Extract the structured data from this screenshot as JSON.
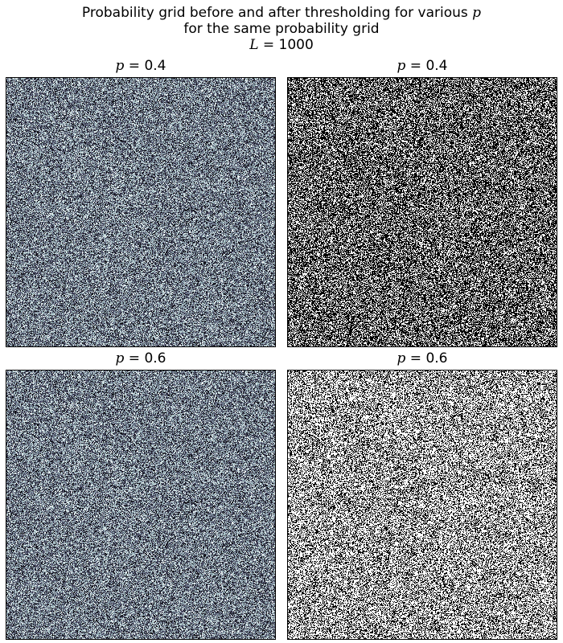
{
  "figure": {
    "title_line1_prefix": "Probability grid before and after thresholding for various ",
    "title_line1_var": "p",
    "title_line2": "for the same probability grid",
    "title_line3_var": "L",
    "title_line3_rest": " = 1000"
  },
  "chart_data": [
    {
      "type": "heatmap",
      "panel": "top-left",
      "title_var": "p",
      "title_rest": " = 0.4",
      "p": 0.4,
      "L": 1000,
      "content": "probability grid (continuous values 0-1)",
      "colormap": "bone",
      "axes_ticks": false
    },
    {
      "type": "heatmap",
      "panel": "top-right",
      "title_var": "p",
      "title_rest": " = 0.4",
      "p": 0.4,
      "L": 1000,
      "content": "thresholded grid (binary)",
      "colormap": "binary",
      "axes_ticks": false
    },
    {
      "type": "heatmap",
      "panel": "bottom-left",
      "title_var": "p",
      "title_rest": " = 0.6",
      "p": 0.6,
      "L": 1000,
      "content": "probability grid (continuous values 0-1)",
      "colormap": "bone",
      "axes_ticks": false
    },
    {
      "type": "heatmap",
      "panel": "bottom-right",
      "title_var": "p",
      "title_rest": " = 0.6",
      "p": 0.6,
      "L": 1000,
      "content": "thresholded grid (binary)",
      "colormap": "binary",
      "axes_ticks": false
    }
  ]
}
